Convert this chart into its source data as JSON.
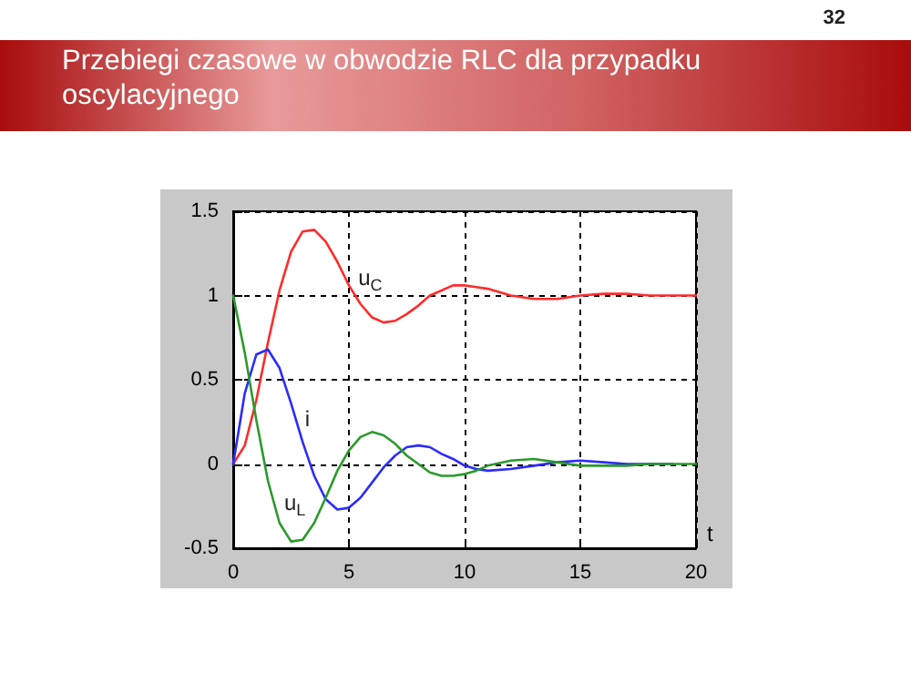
{
  "chart_data": {
    "type": "line",
    "title": "Przebiegi czasowe w obwodzie RLC dla przypadku oscylacyjnego",
    "annotations": [
      "32"
    ],
    "xlabel": "t",
    "x": [
      0,
      0.5,
      1,
      1.5,
      2,
      2.5,
      3,
      3.5,
      4,
      4.5,
      5,
      5.5,
      6,
      6.5,
      7,
      7.5,
      8,
      8.5,
      9,
      9.5,
      10,
      10.5,
      11,
      12,
      13,
      14,
      15,
      16,
      17,
      18,
      19,
      20
    ],
    "series": [
      {
        "name": "u$_{C}$",
        "color": "#ff2b2b",
        "values": [
          0,
          0.11,
          0.38,
          0.72,
          1.03,
          1.26,
          1.38,
          1.39,
          1.32,
          1.2,
          1.06,
          0.95,
          0.87,
          0.84,
          0.85,
          0.89,
          0.94,
          1.0,
          1.03,
          1.06,
          1.06,
          1.05,
          1.04,
          1.0,
          0.98,
          0.98,
          1.0,
          1.01,
          1.01,
          1.0,
          1.0,
          1.0
        ]
      },
      {
        "name": "i",
        "color": "#2b2bff",
        "values": [
          0,
          0.42,
          0.65,
          0.68,
          0.57,
          0.36,
          0.13,
          -0.07,
          -0.21,
          -0.27,
          -0.26,
          -0.2,
          -0.11,
          -0.02,
          0.05,
          0.1,
          0.11,
          0.1,
          0.06,
          0.03,
          -0.01,
          -0.03,
          -0.04,
          -0.03,
          -0.01,
          0.01,
          0.02,
          0.01,
          0,
          0,
          0,
          null
        ]
      },
      {
        "name": "u$_{L}$",
        "color": "#2a9a2a",
        "values": [
          1,
          0.66,
          0.26,
          -0.1,
          -0.35,
          -0.46,
          -0.45,
          -0.35,
          -0.2,
          -0.04,
          0.08,
          0.16,
          0.19,
          0.17,
          0.12,
          0.05,
          0,
          -0.05,
          -0.07,
          -0.07,
          -0.06,
          -0.04,
          -0.01,
          0.02,
          0.03,
          0.01,
          -0.01,
          -0.01,
          -0.01,
          0,
          0,
          0
        ]
      }
    ],
    "xlim": [
      0,
      20
    ],
    "xticks": [
      0,
      5,
      10,
      15,
      20
    ],
    "ylim": [
      -0.5,
      1.5
    ],
    "yticks": [
      -0.5,
      0,
      0.5,
      1,
      1.5
    ],
    "grid": true,
    "legend": false,
    "marker": "none",
    "line_style": "solid"
  }
}
